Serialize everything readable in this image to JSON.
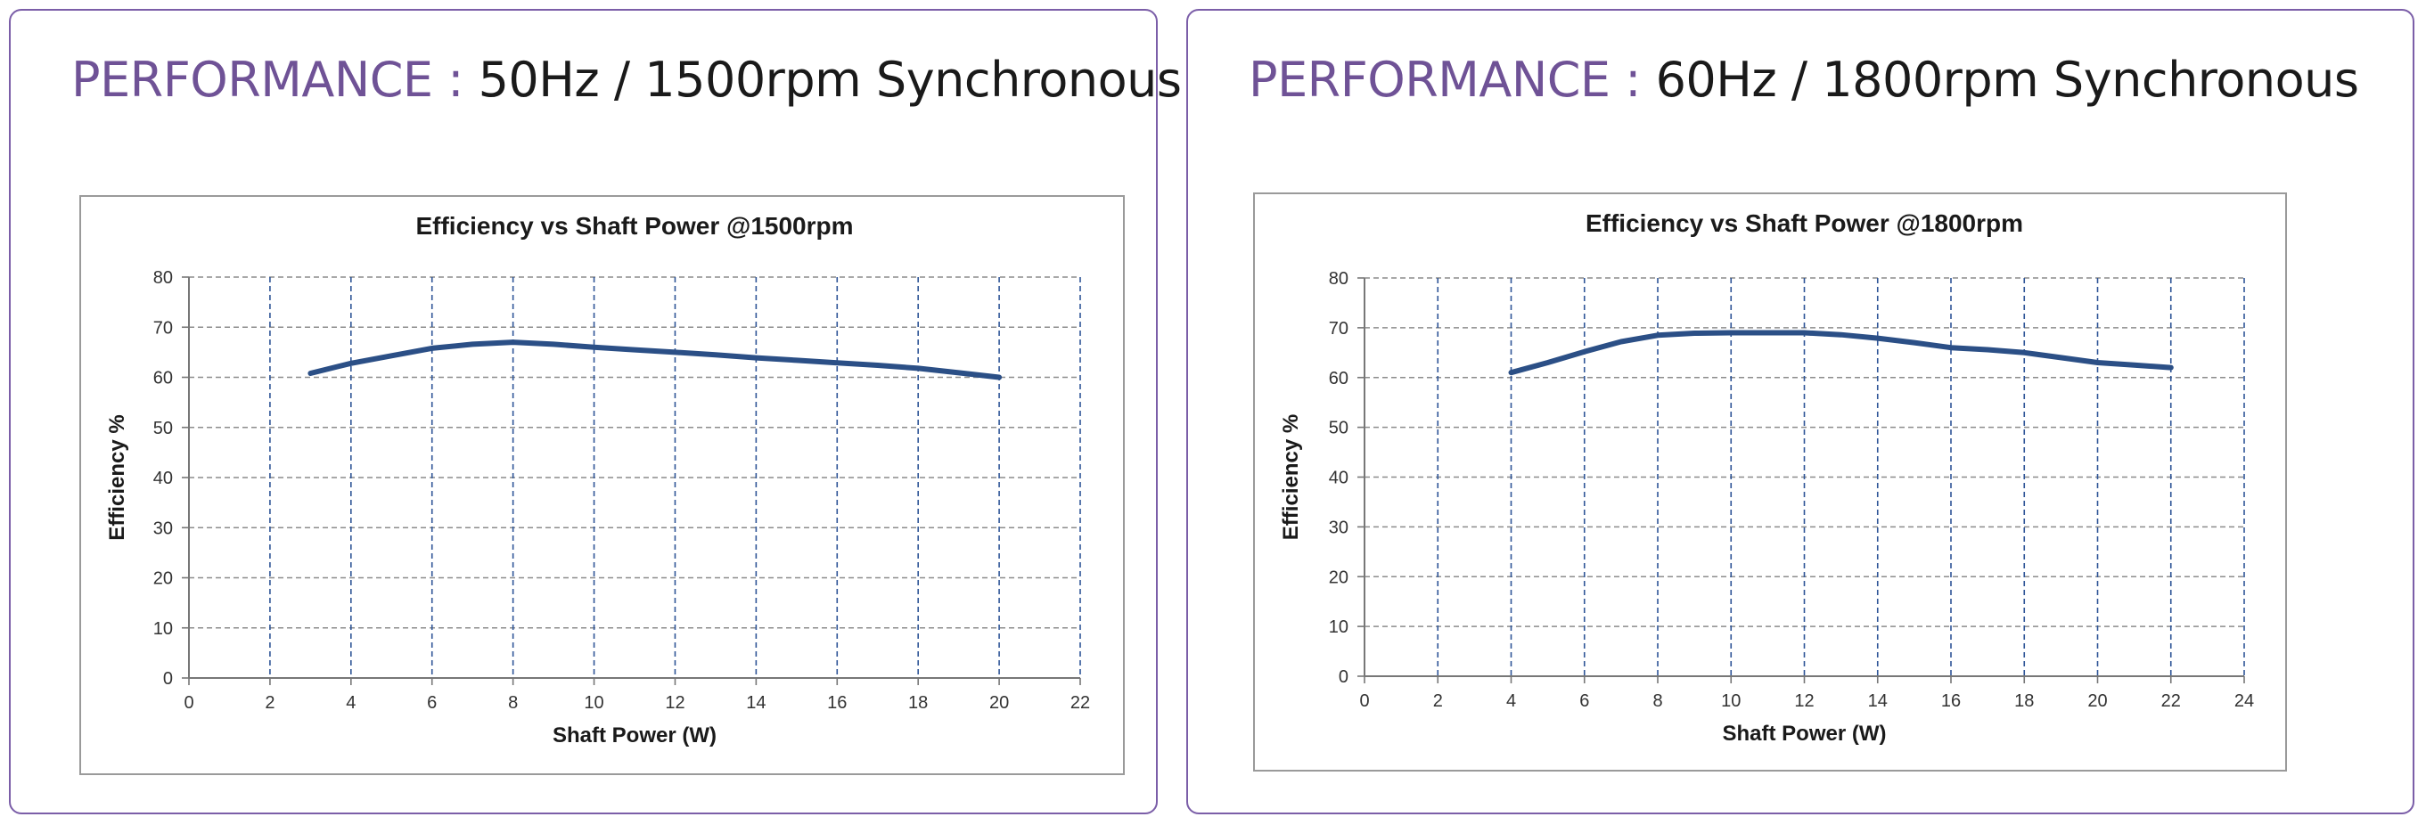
{
  "panels": [
    {
      "prefix": "PERFORMANCE :",
      "spec": " 50Hz / 1500rpm Synchronous"
    },
    {
      "prefix": "PERFORMANCE :",
      "spec": " 60Hz / 1800rpm Synchronous"
    }
  ],
  "colors": {
    "border": "#7b5ea8",
    "heading_accent": "#6f5296",
    "series_line": "#2b4f86",
    "vertical_grid": "#2f5597",
    "horizontal_grid": "#8c8c8c"
  },
  "chart_data": [
    {
      "type": "line",
      "title": "Efficiency vs Shaft Power @1500rpm",
      "xlabel": "Shaft Power (W)",
      "ylabel": "Efficiency %",
      "xlim": [
        0,
        22
      ],
      "ylim": [
        0,
        80
      ],
      "xticks": [
        0,
        2,
        4,
        6,
        8,
        10,
        12,
        14,
        16,
        18,
        20,
        22
      ],
      "yticks": [
        0,
        10,
        20,
        30,
        40,
        50,
        60,
        70,
        80
      ],
      "grid": true,
      "series": [
        {
          "x": [
            3,
            4,
            5,
            6,
            7,
            8,
            9,
            10,
            11,
            12,
            13,
            14,
            15,
            16,
            17,
            18,
            19,
            20
          ],
          "values": [
            60.8,
            62.8,
            64.3,
            65.8,
            66.6,
            67.0,
            66.6,
            66.0,
            65.5,
            65.0,
            64.5,
            63.9,
            63.4,
            62.9,
            62.4,
            61.8,
            60.9,
            60.0
          ]
        }
      ]
    },
    {
      "type": "line",
      "title": "Efficiency vs Shaft Power @1800rpm",
      "xlabel": "Shaft Power (W)",
      "ylabel": "Efficiency %",
      "xlim": [
        0,
        24
      ],
      "ylim": [
        0,
        80
      ],
      "xticks": [
        0,
        2,
        4,
        6,
        8,
        10,
        12,
        14,
        16,
        18,
        20,
        22,
        24
      ],
      "yticks": [
        0,
        10,
        20,
        30,
        40,
        50,
        60,
        70,
        80
      ],
      "grid": true,
      "series": [
        {
          "x": [
            4,
            5,
            6,
            7,
            8,
            9,
            10,
            11,
            12,
            13,
            14,
            15,
            16,
            17,
            18,
            19,
            20,
            21,
            22
          ],
          "values": [
            61.0,
            63.0,
            65.2,
            67.2,
            68.5,
            68.9,
            69.0,
            69.0,
            69.0,
            68.6,
            67.9,
            67.0,
            66.0,
            65.6,
            65.0,
            64.0,
            63.0,
            62.5,
            62.0
          ]
        }
      ]
    }
  ]
}
